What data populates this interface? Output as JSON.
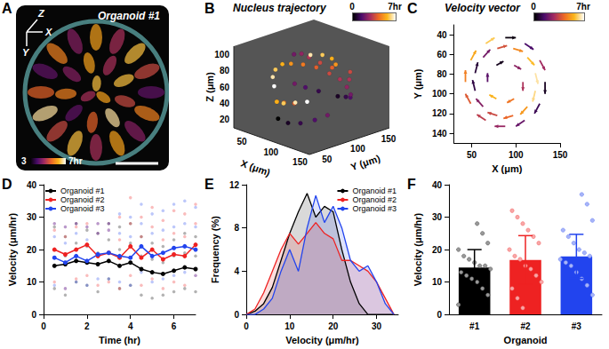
{
  "image": {
    "panel": "A",
    "title": "Organoid #1",
    "axis_labels": [
      "Z",
      "X",
      "Y"
    ],
    "colorbar_labels": [
      "3",
      "7hr"
    ]
  },
  "chart_data": [
    {
      "panel": "B",
      "type": "scatter3d",
      "title": "Nucleus trajectory",
      "xlabel": "X (μm)",
      "ylabel": "Y (μm)",
      "zlabel": "Z (μm)",
      "xlim": [
        30,
        160
      ],
      "ylim": [
        30,
        160
      ],
      "zlim": [
        10,
        110
      ],
      "xticks": [
        50,
        100,
        150
      ],
      "yticks": [
        50,
        100,
        150
      ],
      "zticks": [
        20,
        40,
        60,
        80,
        100
      ],
      "colorbar": {
        "range": [
          0,
          7
        ],
        "ticks": [
          0,
          {
            "value": 7,
            "label": "7hr"
          }
        ]
      },
      "points": [
        [
          140,
          95,
          60,
          0.5
        ],
        [
          138,
          110,
          55,
          1
        ],
        [
          133,
          122,
          50,
          1.5
        ],
        [
          122,
          133,
          48,
          2
        ],
        [
          108,
          140,
          52,
          2.5
        ],
        [
          95,
          141,
          58,
          3
        ],
        [
          80,
          138,
          62,
          3.5
        ],
        [
          66,
          130,
          68,
          4
        ],
        [
          56,
          118,
          72,
          4.5
        ],
        [
          50,
          104,
          75,
          5
        ],
        [
          50,
          90,
          78,
          5.5
        ],
        [
          54,
          75,
          76,
          6
        ],
        [
          62,
          63,
          72,
          6.5
        ],
        [
          74,
          54,
          66,
          7
        ],
        [
          85,
          50,
          30,
          0
        ],
        [
          100,
          52,
          28,
          0.5
        ],
        [
          115,
          58,
          30,
          1
        ],
        [
          127,
          70,
          34,
          1.5
        ],
        [
          134,
          84,
          38,
          2
        ],
        [
          70,
          90,
          95,
          2
        ],
        [
          85,
          88,
          100,
          2.5
        ],
        [
          100,
          86,
          100,
          3
        ],
        [
          115,
          90,
          96,
          3.5
        ],
        [
          125,
          100,
          90,
          4
        ],
        [
          60,
          100,
          30,
          4
        ],
        [
          58,
          85,
          34,
          4.5
        ],
        [
          62,
          70,
          40,
          5
        ],
        [
          72,
          60,
          45,
          5.5
        ],
        [
          88,
          56,
          48,
          6
        ],
        [
          104,
          60,
          52,
          6.5
        ],
        [
          118,
          66,
          55,
          7
        ],
        [
          110,
          120,
          85,
          5
        ],
        [
          98,
          125,
          88,
          5.5
        ],
        [
          85,
          122,
          90,
          6
        ],
        [
          75,
          112,
          90,
          6.5
        ],
        [
          128,
          125,
          70,
          3
        ],
        [
          120,
          134,
          75,
          3.5
        ],
        [
          70,
          130,
          40,
          1
        ],
        [
          60,
          118,
          45,
          1.5
        ],
        [
          52,
          108,
          50,
          2
        ]
      ]
    },
    {
      "panel": "C",
      "type": "vector",
      "title": "Velocity vector",
      "xlabel": "X (μm)",
      "ylabel": "Y (μm)",
      "xlim": [
        30,
        150
      ],
      "ylim": [
        150,
        30
      ],
      "xticks": [
        50,
        100,
        150
      ],
      "yticks": [
        40,
        60,
        80,
        100,
        120,
        140
      ],
      "grid": false,
      "colorbar": {
        "range": [
          0,
          7
        ],
        "ticks": [
          0,
          {
            "value": 7,
            "label": "7hr"
          }
        ]
      },
      "arrows": [
        [
          133,
          88,
          0,
          12,
          0.5
        ],
        [
          127,
          110,
          -6,
          10,
          1.2
        ],
        [
          110,
          127,
          -10,
          6,
          2.0
        ],
        [
          88,
          133,
          -12,
          0,
          2.8
        ],
        [
          66,
          127,
          -10,
          -6,
          3.5
        ],
        [
          49,
          110,
          -6,
          -10,
          4.2
        ],
        [
          43,
          88,
          0,
          -12,
          5.0
        ],
        [
          49,
          66,
          6,
          -10,
          5.8
        ],
        [
          66,
          49,
          10,
          -6,
          6.5
        ],
        [
          88,
          43,
          12,
          0,
          0.2
        ],
        [
          110,
          49,
          10,
          6,
          1.5
        ],
        [
          127,
          66,
          6,
          10,
          3.0
        ],
        [
          122,
          97,
          -3,
          11,
          6.8
        ],
        [
          113,
          113,
          -8,
          8,
          5.5
        ],
        [
          97,
          122,
          -11,
          3,
          4.5
        ],
        [
          79,
          122,
          -11,
          -3,
          3.8
        ],
        [
          63,
          113,
          -8,
          -8,
          2.5
        ],
        [
          54,
          97,
          -3,
          -11,
          1.0
        ],
        [
          54,
          79,
          3,
          -11,
          0.8
        ],
        [
          63,
          63,
          8,
          -8,
          2.2
        ],
        [
          79,
          54,
          11,
          -3,
          4.0
        ],
        [
          97,
          54,
          11,
          3,
          5.2
        ],
        [
          113,
          63,
          8,
          8,
          6.2
        ],
        [
          122,
          79,
          3,
          11,
          7.0
        ],
        [
          108,
          88,
          0,
          9,
          3.2
        ],
        [
          98,
          105,
          -8,
          4,
          4.8
        ],
        [
          78,
          105,
          -8,
          -4,
          6.0
        ],
        [
          68,
          88,
          0,
          -9,
          1.8
        ],
        [
          78,
          71,
          8,
          -4,
          0.4
        ],
        [
          98,
          71,
          8,
          4,
          2.6
        ]
      ]
    },
    {
      "panel": "D",
      "type": "line",
      "xlabel": "Time (hr)",
      "ylabel": "Velocity (μm/hr)",
      "x": [
        0.5,
        1,
        1.5,
        2,
        2.5,
        3,
        3.5,
        4,
        4.5,
        5,
        5.5,
        6,
        6.5,
        7
      ],
      "xlim": [
        0,
        7
      ],
      "xticks": [
        0,
        2,
        4,
        6
      ],
      "ylim": [
        0,
        40
      ],
      "yticks": [
        0,
        10,
        20,
        30,
        40
      ],
      "grid": false,
      "legend": "top-left",
      "marker": "circle",
      "series": [
        {
          "name": "Organoid #1",
          "color": "#000000",
          "values": [
            15,
            15.5,
            16.5,
            16,
            15.5,
            16.5,
            15,
            16,
            14,
            13,
            12.5,
            13.5,
            14.5,
            14
          ],
          "cells": [
            [
              8,
              20,
              27
            ],
            [
              6,
              18,
              24
            ],
            [
              10,
              22,
              28
            ],
            [
              9,
              21,
              26
            ],
            [
              7,
              19,
              25
            ],
            [
              11,
              23,
              28
            ],
            [
              8,
              20,
              27
            ],
            [
              9,
              22,
              28
            ],
            [
              6,
              18,
              24
            ],
            [
              5,
              17,
              22
            ],
            [
              6,
              16,
              21
            ],
            [
              7,
              18,
              23
            ],
            [
              8,
              19,
              25
            ],
            [
              7,
              18,
              24
            ]
          ]
        },
        {
          "name": "Organoid #2",
          "color": "#ee2222",
          "values": [
            20,
            18.5,
            20,
            21.5,
            18,
            19,
            17.5,
            21,
            17.5,
            20,
            17,
            18.5,
            18,
            21.5
          ],
          "cells": [
            [
              10,
              26,
              28
            ],
            [
              8,
              24,
              27
            ],
            [
              11,
              27,
              28
            ],
            [
              12,
              27,
              28
            ],
            [
              9,
              25,
              28
            ],
            [
              10,
              26,
              28
            ],
            [
              8,
              23,
              30
            ],
            [
              12,
              28,
              36
            ],
            [
              9,
              24,
              30
            ],
            [
              11,
              27,
              33
            ],
            [
              8,
              23,
              29
            ],
            [
              10,
              25,
              32
            ],
            [
              9,
              24,
              31
            ],
            [
              12,
              28,
              34
            ]
          ]
        },
        {
          "name": "Organoid #3",
          "color": "#2244ee",
          "values": [
            17.5,
            16,
            18,
            16.5,
            18.5,
            19,
            18,
            17.5,
            21,
            18,
            19,
            20.5,
            21,
            20
          ],
          "cells": [
            [
              9,
              24,
              28
            ],
            [
              8,
              22,
              27
            ],
            [
              10,
              25,
              28
            ],
            [
              9,
              23,
              27
            ],
            [
              11,
              25,
              28
            ],
            [
              11,
              26,
              28
            ],
            [
              10,
              25,
              31
            ],
            [
              9,
              24,
              30
            ],
            [
              13,
              28,
              34
            ],
            [
              10,
              25,
              31
            ],
            [
              11,
              26,
              32
            ],
            [
              12,
              27,
              34
            ],
            [
              13,
              28,
              35
            ],
            [
              12,
              27,
              33
            ]
          ]
        }
      ]
    },
    {
      "panel": "E",
      "type": "area",
      "xlabel": "Velocity (μm/hr)",
      "ylabel": "Frequency (%)",
      "x": [
        0,
        2,
        4,
        6,
        8,
        10,
        12,
        14,
        16,
        18,
        20,
        22,
        24,
        26,
        28,
        30,
        32,
        34
      ],
      "xlim": [
        0,
        35
      ],
      "xticks": [
        0,
        10,
        20,
        30
      ],
      "ylim": [
        0,
        12
      ],
      "yticks": [
        0,
        4,
        8,
        12
      ],
      "grid": false,
      "legend": "top-right",
      "marker": "none",
      "series": [
        {
          "name": "Organoid #1",
          "color": "#000000",
          "values": [
            0,
            0.3,
            1,
            2.5,
            5,
            7.5,
            9.5,
            11.2,
            9,
            10,
            9.5,
            6,
            3,
            1,
            0,
            0,
            0,
            0
          ]
        },
        {
          "name": "Organoid #2",
          "color": "#ee2222",
          "values": [
            0,
            0.5,
            2,
            4,
            6,
            7.5,
            6.5,
            7.5,
            8.5,
            7.5,
            7,
            5,
            5,
            4.5,
            4,
            3,
            1.5,
            0
          ]
        },
        {
          "name": "Organoid #3",
          "color": "#2244ee",
          "values": [
            0,
            0,
            0.5,
            1.5,
            4,
            6,
            4,
            8,
            11,
            8.5,
            10,
            8,
            5,
            4,
            4.5,
            3,
            1,
            0
          ]
        }
      ]
    },
    {
      "panel": "F",
      "type": "bar",
      "xlabel": "Organoid",
      "ylabel": "Velocity (μm/hr)",
      "categories": [
        "#1",
        "#2",
        "#3"
      ],
      "values": [
        14.5,
        16.8,
        17.9
      ],
      "errors": [
        5.5,
        7.5,
        6.8
      ],
      "colors": [
        "#000000",
        "#ee2222",
        "#2244ee"
      ],
      "ylim": [
        0,
        40
      ],
      "yticks": [
        0,
        10,
        20,
        30,
        40
      ],
      "grid": false,
      "cells": [
        [
          3,
          6,
          8,
          10,
          11,
          12,
          13,
          14,
          15,
          15,
          16,
          17,
          18,
          20,
          22,
          25,
          28
        ],
        [
          2,
          5,
          8,
          10,
          12,
          14,
          15,
          17,
          18,
          20,
          22,
          24,
          26,
          28,
          30,
          32
        ],
        [
          6,
          9,
          11,
          13,
          15,
          16,
          17,
          18,
          19,
          20,
          22,
          24,
          26,
          29,
          34,
          37
        ]
      ]
    }
  ]
}
